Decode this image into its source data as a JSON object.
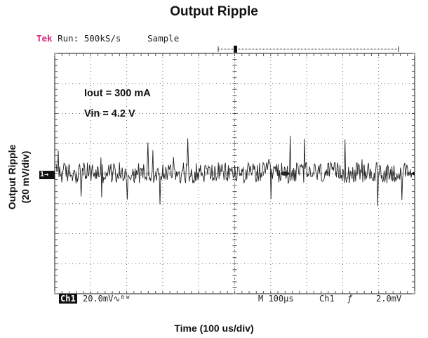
{
  "chart_data": {
    "type": "line",
    "title": "Output Ripple",
    "xlabel": "Time (100 us/div)",
    "ylabel_lines": [
      "Output Ripple",
      "(20 mV/div)"
    ],
    "x_divisions": 10,
    "y_divisions": 8,
    "x_range_us": [
      0,
      1000
    ],
    "y_range_mV": [
      -80,
      80
    ],
    "grid": true,
    "series": [
      {
        "noise_amplitude_mV": 7,
        "spike_max_mV": 25,
        "color": "#222222"
      }
    ],
    "annotations": [
      "Iout = 300 mA",
      "Vin = 4.2 V"
    ]
  },
  "scope": {
    "brand": "Tek",
    "run_status": "Run: 500kS/s",
    "acq_mode": "Sample",
    "ch_marker": "1→",
    "ch_label": "Ch1",
    "ch_scale": "20.0mV",
    "ch_coupling": "∿ᴮᵂ",
    "timebase": "M 100µs",
    "trigger_source": "Ch1",
    "trigger_slope": "ƒ",
    "trigger_level": "2.0mV"
  }
}
